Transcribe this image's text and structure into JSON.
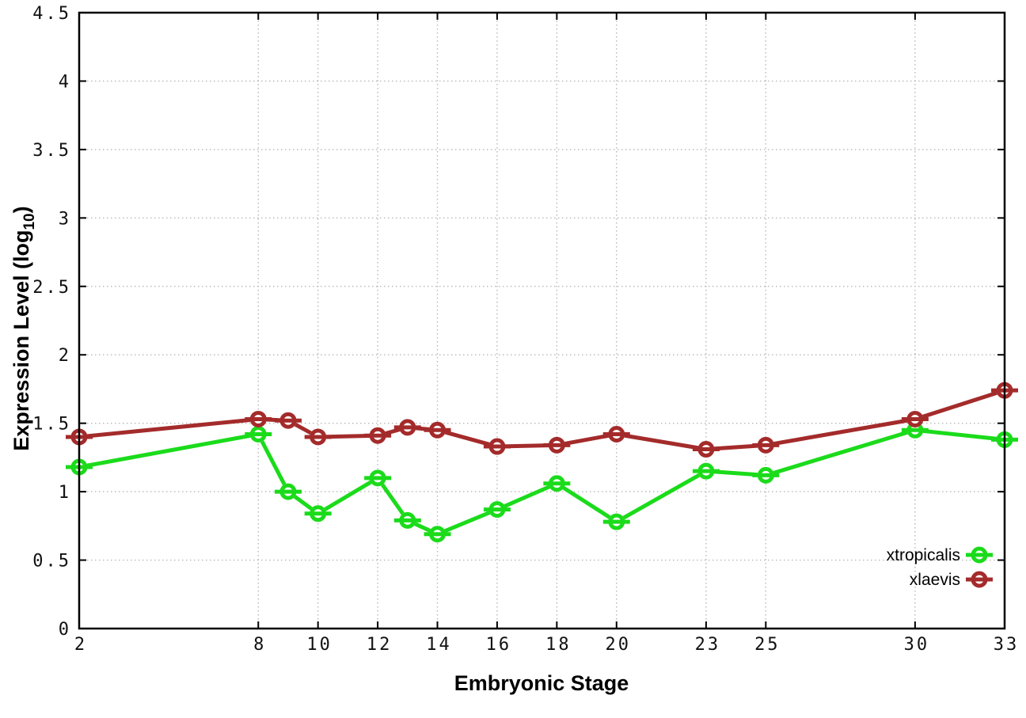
{
  "chart_data": {
    "type": "line",
    "title": "",
    "xlabel": "Embryonic Stage",
    "ylabel": "Expression Level (log10)",
    "ylabel_rich": {
      "prefix": "Expression Level (log",
      "sub": "10",
      "suffix": ")"
    },
    "xlim": [
      2,
      33
    ],
    "ylim": [
      0,
      4.5
    ],
    "grid": true,
    "legend": {
      "position": "inside-bottom-right"
    },
    "marker_style": "open-circle-with-horizontal-dash",
    "colors": {
      "grid": "#b8b8b8",
      "axis": "#000000",
      "background": "#ffffff",
      "xtropicalis": "#1bdb1b",
      "xlaevis": "#a42b2b"
    },
    "x_ticks": [
      {
        "v": 2,
        "label": "2"
      },
      {
        "v": 8,
        "label": "8"
      },
      {
        "v": 10,
        "label": "10"
      },
      {
        "v": 12,
        "label": "12"
      },
      {
        "v": 14,
        "label": "14"
      },
      {
        "v": 16,
        "label": "16"
      },
      {
        "v": 18,
        "label": "18"
      },
      {
        "v": 20,
        "label": "20"
      },
      {
        "v": 23,
        "label": "23"
      },
      {
        "v": 25,
        "label": "25"
      },
      {
        "v": 30,
        "label": "30"
      },
      {
        "v": 33,
        "label": "33"
      }
    ],
    "y_ticks": [
      {
        "v": 0,
        "label": "0"
      },
      {
        "v": 0.5,
        "label": "0.5"
      },
      {
        "v": 1,
        "label": "1"
      },
      {
        "v": 1.5,
        "label": "1.5"
      },
      {
        "v": 2,
        "label": "2"
      },
      {
        "v": 2.5,
        "label": "2.5"
      },
      {
        "v": 3,
        "label": "3"
      },
      {
        "v": 3.5,
        "label": "3.5"
      },
      {
        "v": 4,
        "label": "4"
      },
      {
        "v": 4.5,
        "label": "4.5"
      }
    ],
    "x": [
      2,
      8,
      9,
      10,
      12,
      13,
      14,
      16,
      18,
      20,
      23,
      25,
      30,
      33
    ],
    "series": [
      {
        "name": "xtropicalis",
        "color": "#1bdb1b",
        "values": [
          1.18,
          1.42,
          1.0,
          0.84,
          1.1,
          0.79,
          0.69,
          0.87,
          1.06,
          0.78,
          1.15,
          1.12,
          1.45,
          1.38
        ]
      },
      {
        "name": "xlaevis",
        "color": "#a42b2b",
        "values": [
          1.4,
          1.53,
          1.52,
          1.4,
          1.41,
          1.47,
          1.45,
          1.33,
          1.34,
          1.42,
          1.31,
          1.34,
          1.53,
          1.74
        ]
      }
    ]
  }
}
